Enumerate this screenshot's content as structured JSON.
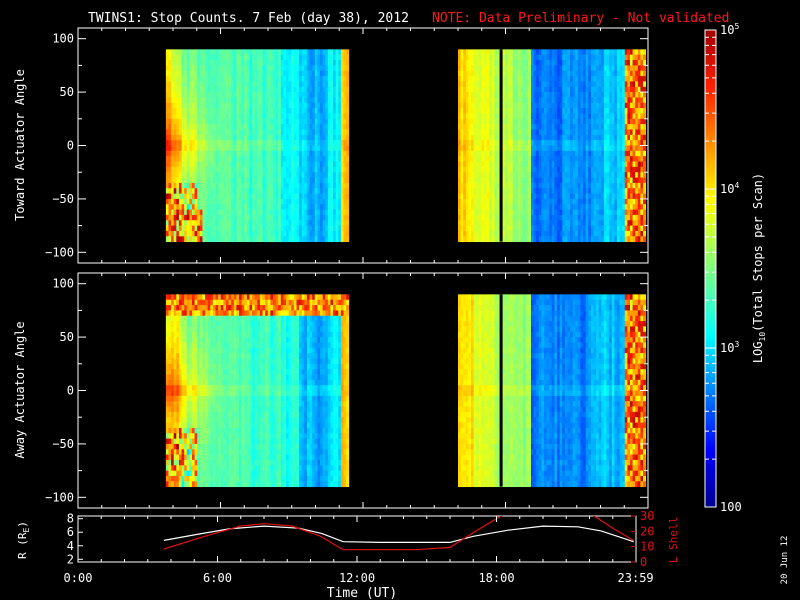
{
  "header": {
    "title": "TWINS1: Stop Counts.  7 Feb (day  38), 2012",
    "note": "NOTE: Data Preliminary - Not validated",
    "note_color": "#ff1a1a"
  },
  "side_date": "20 Jun 12",
  "chart_data": [
    {
      "type": "heatmap",
      "ylabel": "Toward Actuator Angle",
      "ylim": [
        -110,
        110
      ],
      "yticks": [
        "100",
        "50",
        "0",
        "−50",
        "−100"
      ],
      "xlim_hours": [
        0,
        24
      ],
      "data_windows_hours": [
        [
          3.7,
          11.4
        ],
        [
          16.0,
          23.9
        ]
      ],
      "gap_hours": [
        [
          11.4,
          16.0
        ]
      ]
    },
    {
      "type": "heatmap",
      "ylabel": "Away Actuator Angle",
      "ylim": [
        -110,
        110
      ],
      "yticks": [
        "100",
        "50",
        "0",
        "−50",
        "−100"
      ],
      "xlim_hours": [
        0,
        24
      ],
      "data_windows_hours": [
        [
          3.7,
          11.4
        ],
        [
          16.0,
          23.9
        ]
      ],
      "gap_hours": [
        [
          11.4,
          16.0
        ]
      ]
    },
    {
      "type": "line",
      "ylabel_left": "R (R",
      "ylabel_left_sub": "E",
      "ylabel_left_close": ")",
      "ylabel_right": "L Shell",
      "ylim_left": [
        1.6,
        8.4
      ],
      "ylim_right": [
        0,
        30
      ],
      "yticks_left": [
        "8",
        "6",
        "4",
        "2"
      ],
      "yticks_right": [
        "30",
        "20",
        "10",
        "0"
      ],
      "xticks": [
        "0:00",
        "6:00",
        "12:00",
        "18:00",
        "23:59"
      ],
      "xlabel": "Time (UT)",
      "series": [
        {
          "name": "R",
          "color": "#ffffff",
          "x": [
            3.7,
            5.0,
            6.5,
            8.0,
            9.5,
            10.5,
            11.4,
            13.0,
            14.5,
            16.0,
            17.0,
            18.5,
            20.0,
            21.5,
            22.5,
            23.9
          ],
          "y": [
            4.8,
            5.6,
            6.5,
            6.9,
            6.6,
            5.8,
            4.6,
            4.5,
            4.5,
            4.5,
            5.4,
            6.3,
            6.9,
            6.8,
            6.2,
            4.6
          ]
        },
        {
          "name": "L Shell",
          "color": "#e01010",
          "x": [
            3.7,
            5.5,
            7.0,
            8.0,
            9.2,
            10.4,
            11.4,
            13.0,
            14.5,
            16.0,
            17.2,
            18.2,
            18.6
          ],
          "y": [
            8.5,
            17.0,
            23.5,
            25.0,
            23.5,
            17.0,
            8.0,
            8.0,
            8.0,
            9.5,
            21.0,
            30.0,
            32.0
          ],
          "x2": [
            22.0,
            23.0,
            23.9
          ],
          "y2": [
            32.0,
            22.0,
            14.0
          ]
        }
      ]
    }
  ],
  "colorbar": {
    "label_main": "LOG",
    "label_sub": "10",
    "label_rest": "(Total Stops per Scan)",
    "ticks": [
      {
        "base": "10",
        "exp": "5",
        "value": 100000
      },
      {
        "base": "10",
        "exp": "4",
        "value": 10000
      },
      {
        "base": "10",
        "exp": "3",
        "value": 1000
      },
      {
        "base": "100",
        "exp": "",
        "value": 100
      }
    ],
    "range": [
      100,
      100000
    ]
  }
}
